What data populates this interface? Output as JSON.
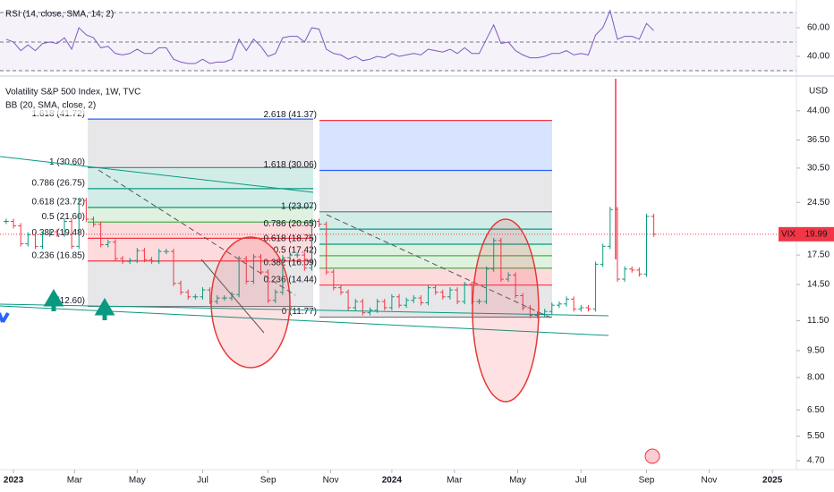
{
  "rsi": {
    "title": "RSI (14, close, SMA, 14, 2)",
    "color": "#7e57c2",
    "ylim": [
      29.4,
      73.1
    ],
    "yticks": [
      {
        "value": 60,
        "label": "60.00"
      },
      {
        "value": 40,
        "label": "40.00"
      }
    ],
    "values": [
      52,
      50,
      44,
      48,
      44,
      49,
      50,
      49,
      53,
      45,
      60,
      55,
      53,
      46,
      47,
      42,
      41,
      42,
      45,
      42,
      42,
      46,
      46,
      38,
      36,
      35,
      35,
      38,
      35,
      36,
      36,
      38,
      52,
      44,
      52,
      47,
      40,
      42,
      53,
      54,
      54,
      50,
      60,
      59,
      45,
      42,
      41,
      38,
      40,
      37,
      38,
      40,
      39,
      42,
      40,
      41,
      42,
      41,
      45,
      44,
      43,
      45,
      42,
      46,
      42,
      42,
      52,
      62,
      49,
      50,
      44,
      41,
      39,
      39,
      40,
      42,
      42,
      44,
      41,
      42,
      41,
      55,
      60,
      72,
      52,
      54,
      54,
      52,
      63,
      58
    ]
  },
  "chart_data": {
    "type": "ohlc",
    "title": "Volatility S&P 500 Index, 1W, TVC",
    "subtitle": "BB (20, SMA, close, 2)",
    "currency": "USD",
    "symbol": "VIX",
    "log_scale": true,
    "up_color": "#089981",
    "down_color": "#f23645",
    "values": [
      21.7,
      21.1,
      18.8,
      19.9,
      18.5,
      20.0,
      20.3,
      20.0,
      21.7,
      18.5,
      24.8,
      22.0,
      21.3,
      18.7,
      19.0,
      17.1,
      16.8,
      16.9,
      18.0,
      17.0,
      16.8,
      17.9,
      17.9,
      14.6,
      13.8,
      13.4,
      13.4,
      14.0,
      13.0,
      13.3,
      13.3,
      13.6,
      17.1,
      14.8,
      17.3,
      15.7,
      13.1,
      13.8,
      17.2,
      17.5,
      17.5,
      16.1,
      21.7,
      21.3,
      15.7,
      14.2,
      13.8,
      12.5,
      13.0,
      12.1,
      12.3,
      13.0,
      12.5,
      13.4,
      12.7,
      13.1,
      13.3,
      12.9,
      14.2,
      13.8,
      13.4,
      14.0,
      13.0,
      14.5,
      13.0,
      13.0,
      16.0,
      19.2,
      15.0,
      15.4,
      13.5,
      12.5,
      11.9,
      12.0,
      12.2,
      12.7,
      12.8,
      13.2,
      12.4,
      12.5,
      12.4,
      16.5,
      18.5,
      23.4,
      15.0,
      16.0,
      15.9,
      15.5,
      22.4,
      19.99
    ],
    "xlim": [
      -0.85,
      108.6
    ],
    "xticks": [
      {
        "value": 1,
        "label": "2023"
      },
      {
        "value": 9.4,
        "label": "Mar"
      },
      {
        "value": 18,
        "label": "May"
      },
      {
        "value": 27,
        "label": "Jul"
      },
      {
        "value": 36,
        "label": "Sep"
      },
      {
        "value": 44.6,
        "label": "Nov"
      },
      {
        "value": 53,
        "label": "2024"
      },
      {
        "value": 61.6,
        "label": "Mar"
      },
      {
        "value": 70.3,
        "label": "May"
      },
      {
        "value": 79,
        "label": "Jul"
      },
      {
        "value": 88,
        "label": "Sep"
      },
      {
        "value": 96.6,
        "label": "Nov"
      },
      {
        "value": 105.3,
        "label": "2025"
      }
    ],
    "ylim": [
      4.44,
      54
    ],
    "yticks": [
      {
        "value": 44,
        "label": "44.00"
      },
      {
        "value": 36.5,
        "label": "36.50"
      },
      {
        "value": 30.5,
        "label": "30.50"
      },
      {
        "value": 24.5,
        "label": "24.50"
      },
      {
        "value": 17.5,
        "label": "17.50"
      },
      {
        "value": 14.5,
        "label": "14.50"
      },
      {
        "value": 11.5,
        "label": "11.50"
      },
      {
        "value": 9.5,
        "label": "9.50"
      },
      {
        "value": 8,
        "label": "8.00"
      },
      {
        "value": 6.5,
        "label": "6.50"
      },
      {
        "value": 5.5,
        "label": "5.50"
      },
      {
        "value": 4.7,
        "label": "4.70"
      }
    ],
    "fib_sets": [
      {
        "levels": [
          {
            "label": "1.618 (41.72)",
            "value": 41.72,
            "color": "#2962ff"
          },
          {
            "label": "1 (30.60)",
            "value": 30.6,
            "color": "#787b86"
          },
          {
            "label": "0.786 (26.75)",
            "value": 26.75,
            "color": "#089981"
          },
          {
            "label": "0.618 (23.72)",
            "value": 23.72,
            "color": "#089981"
          },
          {
            "label": "0.5 (21.60)",
            "value": 21.6,
            "color": "#4caf50"
          },
          {
            "label": "0.382 (19.48)",
            "value": 19.48,
            "color": "#f23645"
          },
          {
            "label": "0.236 (16.85)",
            "value": 16.85,
            "color": "#f23645"
          },
          {
            "label": "0 (12.60)",
            "value": 12.6,
            "color": "#787b86"
          }
        ]
      },
      {
        "levels": [
          {
            "label": "2.618 (41.37)",
            "value": 41.37,
            "color": "#f23645"
          },
          {
            "label": "1.618 (30.06)",
            "value": 30.06,
            "color": "#2962ff"
          },
          {
            "label": "1 (23.07)",
            "value": 23.07,
            "color": "#787b86"
          },
          {
            "label": "0.786 (20.65)",
            "value": 20.65,
            "color": "#089981"
          },
          {
            "label": "0.618 (18.75)",
            "value": 18.75,
            "color": "#089981"
          },
          {
            "label": "0.5 (17.42)",
            "value": 17.42,
            "color": "#4caf50"
          },
          {
            "label": "0.382 (16.09)",
            "value": 16.09,
            "color": "#4caf50"
          },
          {
            "label": "0.236 (14.44)",
            "value": 14.44,
            "color": "#f23645"
          },
          {
            "label": "0 (11.77)",
            "value": 11.77,
            "color": "#787b86"
          }
        ]
      }
    ]
  }
}
